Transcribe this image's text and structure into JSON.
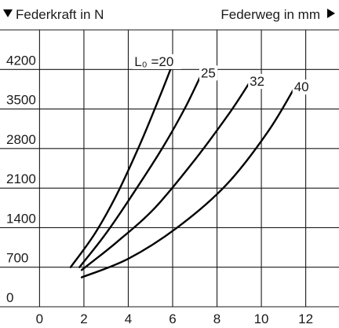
{
  "chart_data": {
    "type": "line",
    "ylabel": "Federkraft in N",
    "xlabel": "Federweg in mm",
    "curve_label_prefix": "L₀ =",
    "x_ticks": [
      0,
      2,
      4,
      6,
      8,
      10,
      12
    ],
    "y_ticks": [
      0,
      700,
      1400,
      2100,
      2800,
      3500,
      4200
    ],
    "xlim": [
      -1.5,
      13.5
    ],
    "ylim": [
      0,
      4900
    ],
    "grid": true,
    "series": [
      {
        "name": "20",
        "x": [
          1.4,
          2.5,
          3.5,
          4.5,
          5.4,
          6.1
        ],
        "y": [
          700,
          1300,
          2000,
          2850,
          3700,
          4400
        ]
      },
      {
        "name": "25",
        "x": [
          1.8,
          3.0,
          4.3,
          5.6,
          6.6,
          7.4
        ],
        "y": [
          700,
          1300,
          2050,
          2850,
          3550,
          4200
        ]
      },
      {
        "name": "32",
        "x": [
          1.9,
          3.5,
          5.2,
          7.0,
          8.6,
          9.6
        ],
        "y": [
          650,
          1150,
          1750,
          2600,
          3450,
          4050
        ]
      },
      {
        "name": "40",
        "x": [
          1.9,
          4.0,
          6.2,
          8.4,
          10.3,
          11.6
        ],
        "y": [
          520,
          850,
          1400,
          2150,
          3100,
          3950
        ]
      }
    ]
  }
}
